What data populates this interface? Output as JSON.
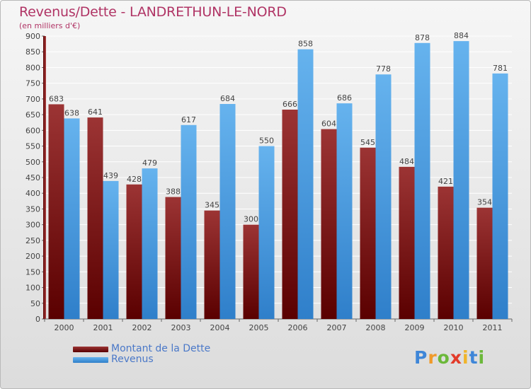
{
  "title": "Revenus/Dette - LANDRETHUN-LE-NORD",
  "subtitle": "(en milliers d'€)",
  "logo": {
    "letters": [
      "P",
      "r",
      "o",
      "x",
      "i",
      "t",
      "i"
    ],
    "colors": [
      "#3e86d8",
      "#f09a2a",
      "#6bb83a",
      "#e23b2a",
      "#f0b42a",
      "#3e86d8",
      "#6bb83a"
    ]
  },
  "colors": {
    "debt_dark": "#5a0000",
    "debt_light": "#9c3434",
    "revenue_dark": "#2f7fca",
    "revenue_light": "#66b3ee",
    "title": "#b03465",
    "legend_text": "#4a78c8"
  },
  "chart_data": {
    "type": "bar",
    "categories": [
      "2000",
      "2001",
      "2002",
      "2003",
      "2004",
      "2005",
      "2006",
      "2007",
      "2008",
      "2009",
      "2010",
      "2011"
    ],
    "series": [
      {
        "name": "Montant de la Dette",
        "values": [
          683,
          641,
          428,
          388,
          345,
          300,
          666,
          604,
          545,
          484,
          421,
          354
        ]
      },
      {
        "name": "Revenus",
        "values": [
          638,
          439,
          479,
          617,
          684,
          550,
          858,
          686,
          778,
          878,
          884,
          781
        ]
      }
    ],
    "ylim": [
      0,
      900
    ],
    "yticks": [
      0,
      50,
      100,
      150,
      200,
      250,
      300,
      350,
      400,
      450,
      500,
      550,
      600,
      650,
      700,
      750,
      800,
      850,
      900
    ],
    "grid": true,
    "legend_position": "bottom-left"
  }
}
